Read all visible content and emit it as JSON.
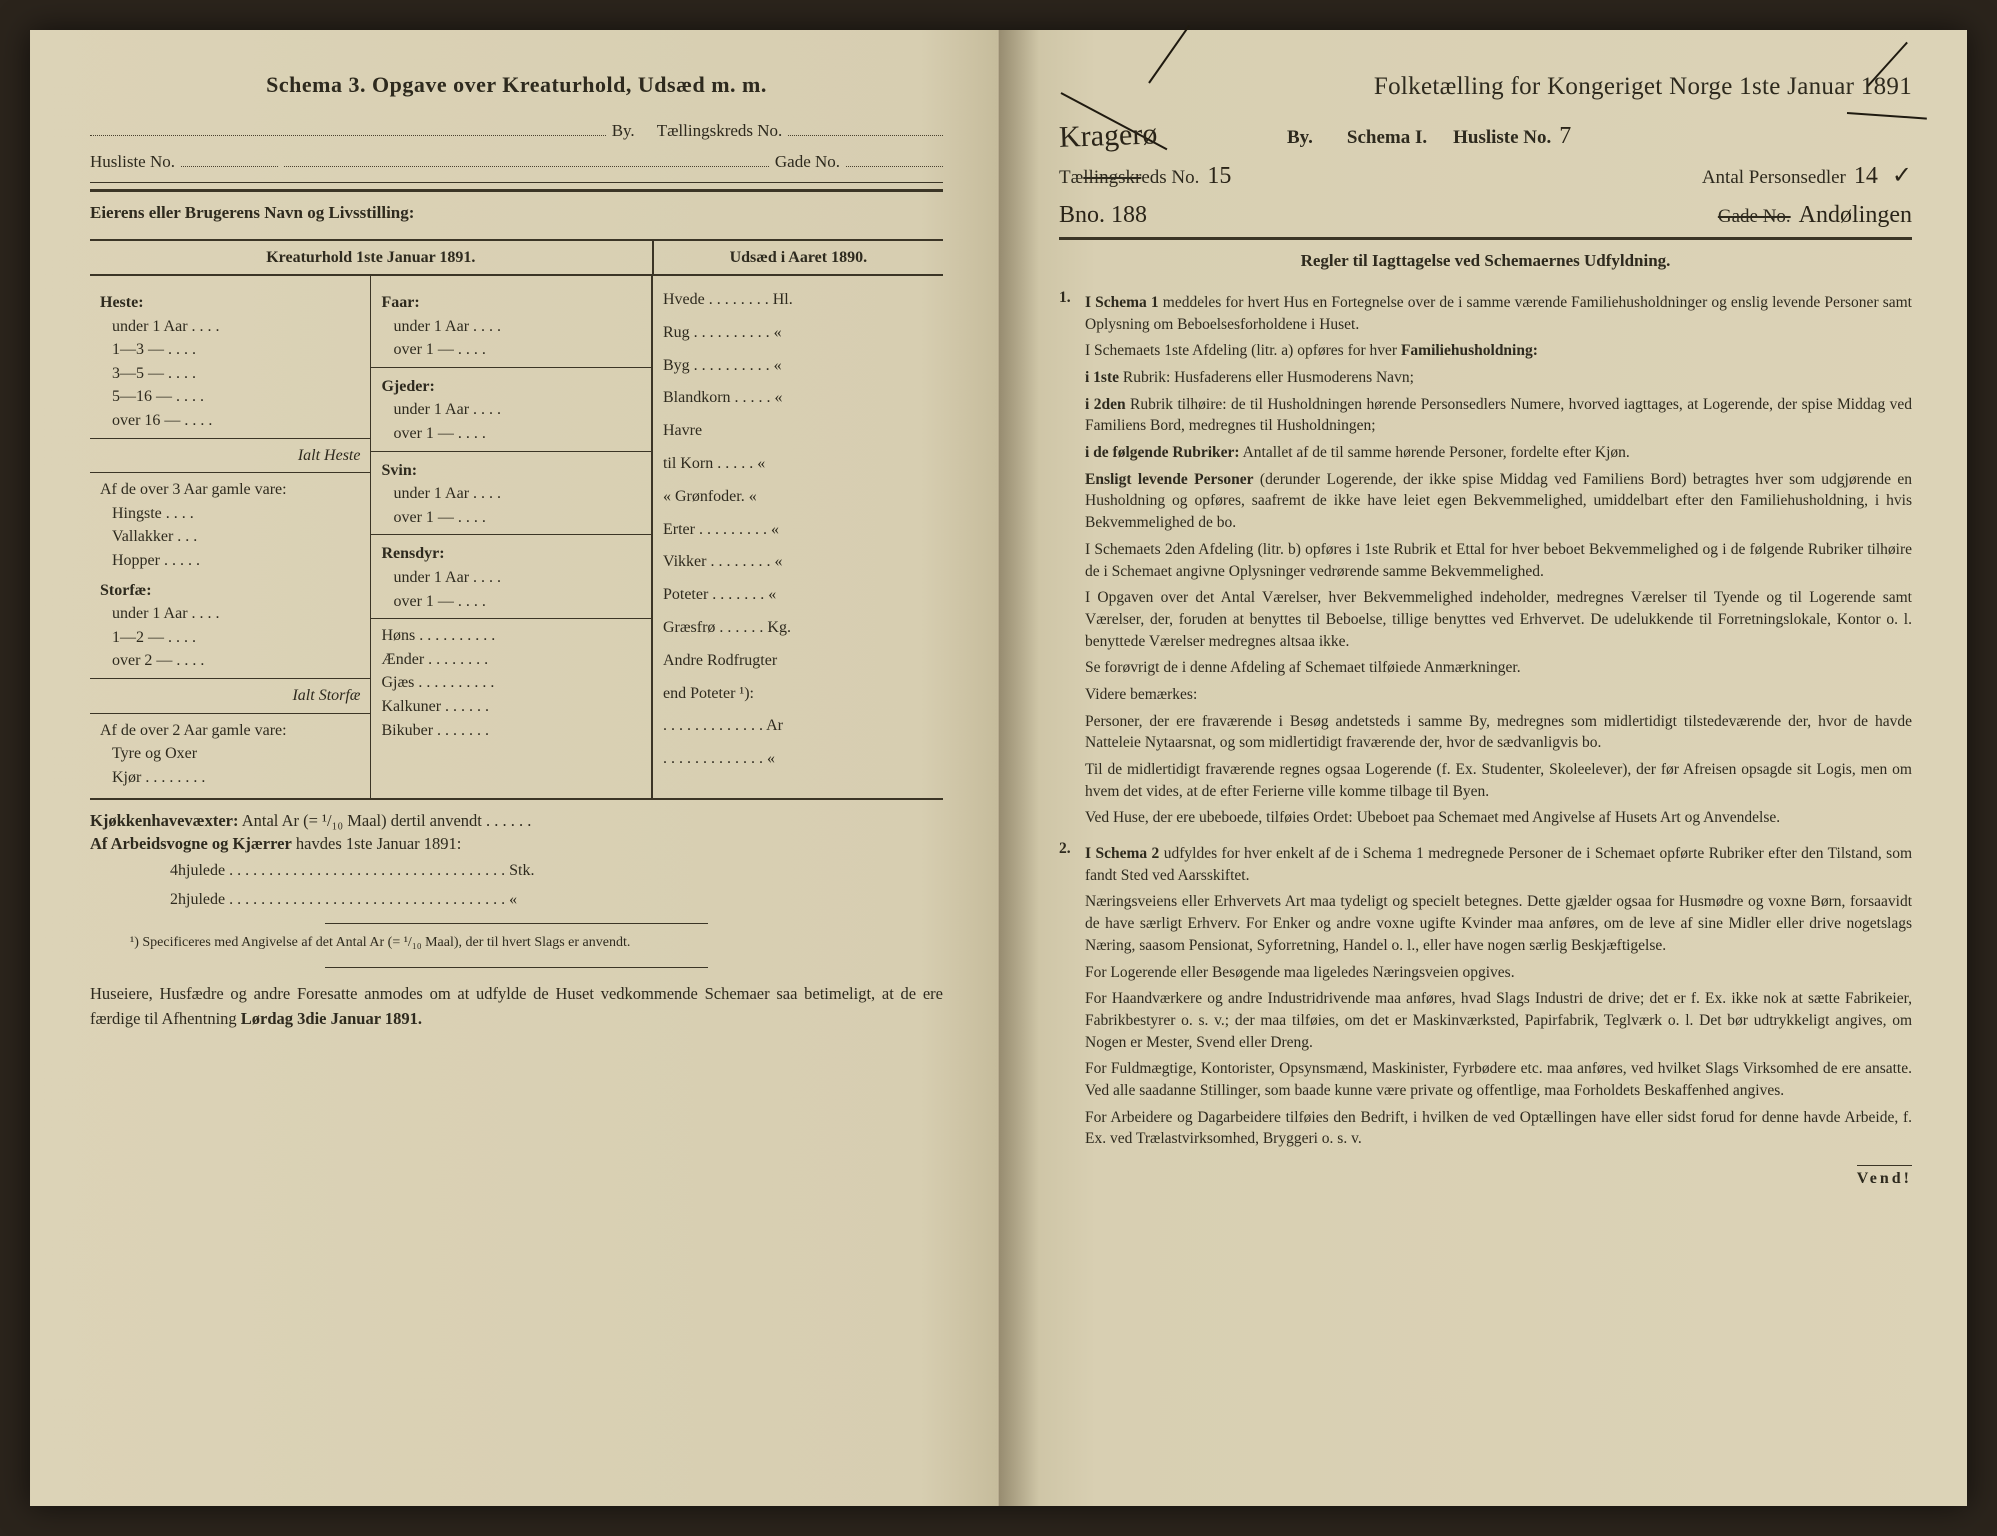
{
  "left": {
    "title": "Schema 3.  Opgave over Kreaturhold, Udsæd m. m.",
    "by_label": "By.",
    "taellingskreds_label": "Tællingskreds No.",
    "husliste_label": "Husliste No.",
    "gade_label": "Gade No.",
    "owner_label": "Eierens eller Brugerens Navn og Livsstilling:",
    "head_left": "Kreaturhold 1ste Januar 1891.",
    "head_right": "Udsæd i Aaret 1890.",
    "col1": {
      "heste": "Heste:",
      "heste_rows": [
        "under 1 Aar . . . .",
        "1—3 — . . . .",
        "3—5 — . . . .",
        "5—16 — . . . .",
        "over 16 — . . . ."
      ],
      "ialt_heste": "Ialt Heste",
      "over3": "Af de over 3 Aar gamle vare:",
      "over3_rows": [
        "Hingste . . . .",
        "Vallakker . . .",
        "Hopper . . . . ."
      ],
      "storfae": "Storfæ:",
      "storfae_rows": [
        "under 1 Aar . . . .",
        "1—2 — . . . .",
        "over 2 — . . . ."
      ],
      "ialt_storfae": "Ialt Storfæ",
      "over2": "Af de over 2 Aar gamle vare:",
      "over2_rows": [
        "Tyre og Oxer",
        "Kjør . . . . . . . ."
      ]
    },
    "col2": {
      "faar": "Faar:",
      "faar_rows": [
        "under 1 Aar . . . .",
        "over 1 — . . . ."
      ],
      "gjeder": "Gjeder:",
      "gjeder_rows": [
        "under 1 Aar . . . .",
        "over 1 — . . . ."
      ],
      "svin": "Svin:",
      "svin_rows": [
        "under 1 Aar . . . .",
        "over 1 — . . . ."
      ],
      "rensdyr": "Rensdyr:",
      "rensdyr_rows": [
        "under 1 Aar . . . .",
        "over 1 — . . . ."
      ],
      "other": [
        "Høns . . . . . . . . . .",
        "Ænder . . . . . . . .",
        "Gjæs . . . . . . . . . .",
        "Kalkuner . . . . . .",
        "Bikuber . . . . . . ."
      ]
    },
    "col3": {
      "rows": [
        "Hvede . . . . . . . . Hl.",
        "Rug . . . . . . . . . . «",
        "Byg . . . . . . . . . . «",
        "Blandkorn . . . . . «",
        "Havre",
        "   til Korn . . . . . «",
        "   « Grønfoder. «",
        "Erter . . . . . . . . . «",
        "Vikker . . . . . . . . «",
        "Poteter . . . . . . . «",
        "Græsfrø . . . . . . Kg.",
        "Andre Rodfrugter",
        "  end Poteter ¹):",
        ". . . . . . . . . . . . . Ar",
        ". . . . . . . . . . . . . «"
      ]
    },
    "kjokken": "Kjøkkenhavevæxter:",
    "kjokken_rest": "Antal Ar (= ¹/₁₀ Maal) dertil anvendt . . . . . .",
    "arb": "Af Arbeidsvogne og Kjærrer",
    "arb_rest": " havdes 1ste Januar 1891:",
    "arb_rows": [
      "4hjulede . . . . . . . . . . . . . . . . . . . . . . . . . . . . . . . . . . . Stk.",
      "2hjulede . . . . . . . . . . . . . . . . . . . . . . . . . . . . . . . . . . .  «"
    ],
    "footnote": "¹) Specificeres med Angivelse af det Antal Ar (= ¹/₁₀ Maal), der til hvert Slags er anvendt.",
    "bottom": "Huseiere, Husfædre og andre Foresatte anmodes om at udfylde de Huset vedkommende Schemaer saa betimeligt, at de ere færdige til Afhentning ",
    "bottom_bold": "Lørdag 3die Januar 1891."
  },
  "right": {
    "title_pre": "Folketælling for Kongeriget Norge 1ste Januar 189",
    "title_year_last": "1",
    "hand_by": "Kragerø",
    "by_label": "By.",
    "schema_label": "Schema I.",
    "husliste_label": "Husliste No.",
    "husliste_hand": "7",
    "taell_label": "Tællingskreds No.",
    "taell_hand": "15",
    "antal_label": "Antal Personsedler",
    "antal_hand": "14",
    "bno_hand": "Bno. 188",
    "gade_label": "Gade No.",
    "gade_hand": "Andølingen",
    "regler": "Regler til Iagttagelse ved Schemaernes Udfyldning.",
    "r1_lead": "I Schema 1",
    "r1_body": " meddeles for hvert Hus en Fortegnelse over de i samme værende Familiehusholdninger og enslig levende Personer samt Oplysning om Beboelsesforholdene i Huset.",
    "r1_a": "I Schemaets 1ste Afdeling (litr. a) opføres for hver ",
    "r1_a_bold": "Familiehusholdning:",
    "i1": "i 1ste",
    "i1_rest": " Rubrik: Husfaderens eller Husmoderens Navn;",
    "i2": "i 2den",
    "i2_rest": " Rubrik tilhøire: de til Husholdningen hørende Personsedlers Numere, hvorved iagttages, at Logerende, der spise Middag ved Familiens Bord, medregnes til Husholdningen;",
    "i3": "i de følgende Rubriker:",
    "i3_rest": " Antallet af de til samme hørende Personer, fordelte efter Kjøn.",
    "enslig": "Ensligt levende Personer",
    "enslig_rest": " (derunder Logerende, der ikke spise Middag ved Familiens Bord) betragtes hver som udgjørende en Husholdning og opføres, saafremt de ikke have leiet egen Bekvemmelighed, umiddelbart efter den Familiehusholdning, i hvis Bekvemmelighed de bo.",
    "p_afd2": "I Schemaets 2den Afdeling (litr. b) opføres i 1ste Rubrik et Ettal for hver beboet Bekvemmelighed og i de følgende Rubriker tilhøire de i Schemaet angivne Oplysninger vedrørende samme Bekvemmelighed.",
    "p_opg": "I Opgaven over det Antal Værelser, hver Bekvemmelighed indeholder, medregnes Værelser til Tyende og til Logerende samt Værelser, der, foruden at benyttes til Beboelse, tillige benyttes ved Erhvervet. De udelukkende til Forretningslokale, Kontor o. l. benyttede Værelser medregnes altsaa ikke.",
    "p_se": "Se forøvrigt de i denne Afdeling af Schemaet tilføiede Anmærkninger.",
    "p_videre": "Videre bemærkes:",
    "p_pers": "Personer, der ere fraværende i Besøg andetsteds i samme By, medregnes som midlertidigt tilstedeværende der, hvor de havde Natteleie Nytaarsnat, og som midlertidigt fraværende der, hvor de sædvanligvis bo.",
    "p_til": "Til de midlertidigt fraværende regnes ogsaa Logerende (f. Ex. Studenter, Skoleelever), der før Afreisen opsagde sit Logis, men om hvem det vides, at de efter Ferierne ville komme tilbage til Byen.",
    "p_ved": "Ved Huse, der ere ubeboede, tilføies Ordet: Ubeboet paa Schemaet med Angivelse af Husets Art og Anvendelse.",
    "r2_lead": "I Schema 2",
    "r2_body": " udfyldes for hver enkelt af de i Schema 1 medregnede Personer de i Schemaet opførte Rubriker efter den Tilstand, som fandt Sted ved Aarsskiftet.",
    "p_naer": "Næringsveiens eller Erhvervets Art maa tydeligt og specielt betegnes. Dette gjælder ogsaa for Husmødre og voxne Børn, forsaavidt de have særligt Erhverv. For Enker og andre voxne ugifte Kvinder maa anføres, om de leve af sine Midler eller drive nogetslags Næring, saasom Pensionat, Syforretning, Handel o. l., eller have nogen særlig Beskjæftigelse.",
    "p_log": "For Logerende eller Besøgende maa ligeledes Næringsveien opgives.",
    "p_haand": "For Haandværkere og andre Industridrivende maa anføres, hvad Slags Industri de drive; det er f. Ex. ikke nok at sætte Fabrikeier, Fabrikbestyrer o. s. v.; der maa tilføies, om det er Maskinværksted, Papirfabrik, Teglværk o. l. Det bør udtrykkeligt angives, om Nogen er Mester, Svend eller Dreng.",
    "p_fuld": "For Fuldmægtige, Kontorister, Opsynsmænd, Maskinister, Fyrbødere etc. maa anføres, ved hvilket Slags Virksomhed de ere ansatte. Ved alle saadanne Stillinger, som baade kunne være private og offentlige, maa Forholdets Beskaffenhed angives.",
    "p_arb": "For Arbeidere og Dagarbeidere tilføies den Bedrift, i hvilken de ved Optællingen have eller sidst forud for denne havde Arbeide, f. Ex. ved Trælastvirksomhed, Bryggeri o. s. v.",
    "vend": "Vend!"
  }
}
